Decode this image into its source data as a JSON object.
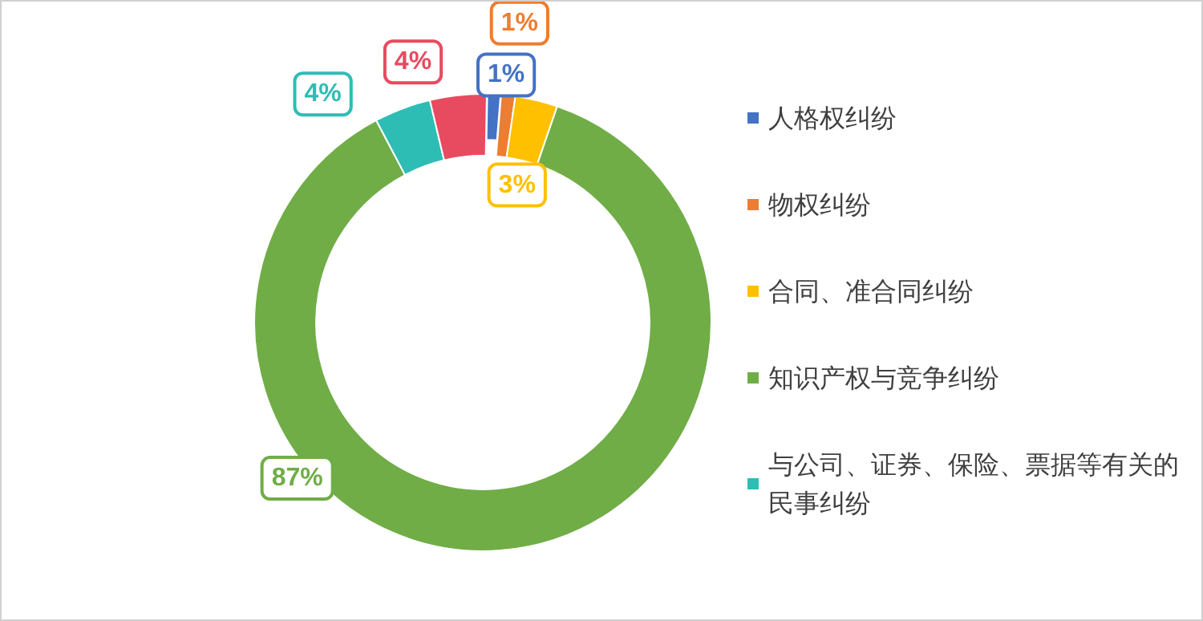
{
  "chart_data": {
    "type": "donut",
    "categories": [
      "人格权纠纷",
      "物权纠纷",
      "合同、准合同纠纷",
      "知识产权与竞争纠纷",
      "与公司、证券、保险、票据等有关的民事纠纷",
      null
    ],
    "values": [
      1,
      1,
      3,
      87,
      4,
      4
    ],
    "value_labels": [
      "1%",
      "1%",
      "3%",
      "87%",
      "4%",
      "4%"
    ],
    "colors": [
      "#4472c4",
      "#ed7d31",
      "#ffc000",
      "#70ad47",
      "#2ebdb4",
      "#e84a5f"
    ],
    "legend": "right"
  }
}
